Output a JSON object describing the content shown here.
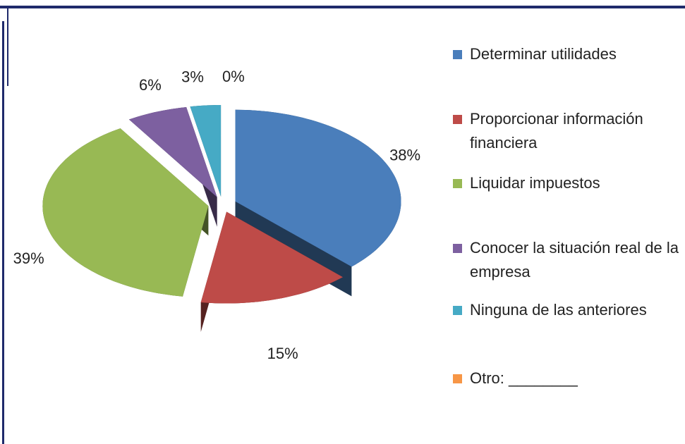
{
  "chart_data": {
    "type": "pie",
    "categories": [
      "Determinar utilidades",
      "Proporcionar información financiera",
      "Liquidar impuestos",
      "Conocer la situación real de la empresa",
      "Ninguna de las anteriores",
      "Otro: ________"
    ],
    "values": [
      38,
      15,
      39,
      6,
      3,
      0
    ],
    "value_labels": [
      "38%",
      "15%",
      "39%",
      "6%",
      "3%",
      "0%"
    ],
    "colors": [
      "#4a7ebb",
      "#be4b48",
      "#98b954",
      "#7d60a0",
      "#46aac5",
      "#f79646"
    ],
    "legend": "right"
  }
}
